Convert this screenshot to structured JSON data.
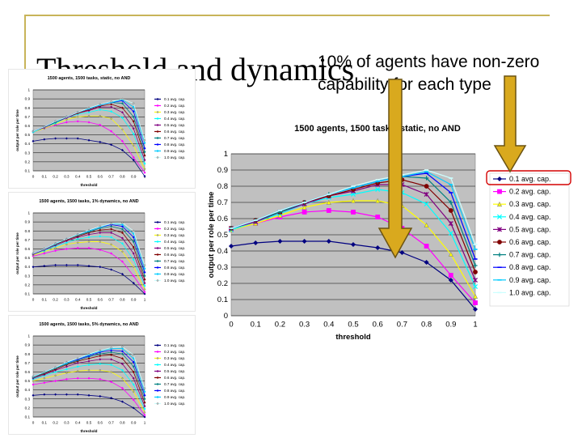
{
  "slide": {
    "title": "Threshold and dynamics",
    "note": "10% of agents have non-zero capability for each type"
  },
  "colors": {
    "accent_rule": "#c8b45a",
    "arrow_fill": "#d9a91e",
    "arrow_stroke": "#6b5312",
    "plot_bg": "#c0c0c0"
  },
  "chart_data": [
    {
      "type": "line",
      "title": "1500 agents, 1500 tasks, static, no AND",
      "xlabel": "threshold",
      "ylabel": "output per role per time",
      "x": [
        0,
        0.1,
        0.2,
        0.3,
        0.4,
        0.5,
        0.6,
        0.7,
        0.8,
        0.9,
        1
      ],
      "xticks": [
        "0",
        "0.1",
        "0.2",
        "0.3",
        "0.4",
        "0.5",
        "0.6",
        "0.7",
        "0.8",
        "0.9",
        "1"
      ],
      "ylim": [
        0,
        1
      ],
      "yticks": [
        "0",
        "0.1",
        "0.2",
        "0.3",
        "0.4",
        "0.5",
        "0.6",
        "0.7",
        "0.8",
        "0.9",
        "1"
      ],
      "grid": true,
      "legend_position": "right",
      "highlighted_series": "0.1 avg. cap.",
      "series": [
        {
          "name": "0.1 avg. cap.",
          "color": "#000080",
          "marker": "diamond",
          "values": [
            0.43,
            0.45,
            0.46,
            0.46,
            0.46,
            0.44,
            0.42,
            0.39,
            0.33,
            0.22,
            0.04
          ]
        },
        {
          "name": "0.2 avg. cap.",
          "color": "#ff00ff",
          "marker": "square",
          "values": [
            0.53,
            0.57,
            0.61,
            0.64,
            0.65,
            0.64,
            0.61,
            0.54,
            0.43,
            0.25,
            0.08
          ]
        },
        {
          "name": "0.3 avg. cap.",
          "color": "#ffff00",
          "marker": "triangle",
          "values": [
            0.53,
            0.57,
            0.62,
            0.67,
            0.7,
            0.71,
            0.71,
            0.68,
            0.56,
            0.38,
            0.12
          ]
        },
        {
          "name": "0.4 avg. cap.",
          "color": "#00ffff",
          "marker": "x",
          "values": [
            0.53,
            0.58,
            0.63,
            0.69,
            0.73,
            0.75,
            0.78,
            0.76,
            0.69,
            0.51,
            0.18
          ]
        },
        {
          "name": "0.5 avg. cap.",
          "color": "#800080",
          "marker": "star",
          "values": [
            0.54,
            0.58,
            0.64,
            0.69,
            0.74,
            0.77,
            0.81,
            0.81,
            0.75,
            0.57,
            0.22
          ]
        },
        {
          "name": "0.6 avg. cap.",
          "color": "#800000",
          "marker": "circle",
          "values": [
            0.54,
            0.59,
            0.64,
            0.7,
            0.74,
            0.78,
            0.82,
            0.84,
            0.8,
            0.65,
            0.27
          ]
        },
        {
          "name": "0.7 avg. cap.",
          "color": "#008080",
          "marker": "plus",
          "values": [
            0.54,
            0.59,
            0.64,
            0.7,
            0.75,
            0.79,
            0.83,
            0.86,
            0.85,
            0.7,
            0.31
          ]
        },
        {
          "name": "0.8 avg. cap.",
          "color": "#0000ff",
          "marker": "dash",
          "values": [
            0.54,
            0.59,
            0.65,
            0.7,
            0.75,
            0.79,
            0.83,
            0.86,
            0.88,
            0.76,
            0.35
          ]
        },
        {
          "name": "0.9 avg. cap.",
          "color": "#00ccff",
          "marker": "dash",
          "values": [
            0.54,
            0.59,
            0.65,
            0.7,
            0.75,
            0.79,
            0.83,
            0.86,
            0.89,
            0.81,
            0.41
          ]
        },
        {
          "name": "1.0 avg. cap.",
          "color": "#ccffff",
          "marker": "dash",
          "values": [
            0.54,
            0.59,
            0.65,
            0.7,
            0.75,
            0.8,
            0.84,
            0.87,
            0.9,
            0.85,
            0.44
          ]
        }
      ]
    },
    {
      "type": "line",
      "title": "1500 agents, 1500 tasks, static, no AND",
      "xlabel": "threshold",
      "ylabel": "output per role per time",
      "x": [
        0,
        0.1,
        0.2,
        0.3,
        0.4,
        0.5,
        0.6,
        0.7,
        0.8,
        0.9,
        1
      ],
      "xticks": [
        "0",
        "0.1",
        "0.2",
        "0.3",
        "0.4",
        "0.5",
        "0.6",
        "0.7",
        "0.8",
        "0.9",
        "1"
      ],
      "ylim": [
        0.1,
        1
      ],
      "yticks": [
        "0.1",
        "0.2",
        "0.3",
        "0.4",
        "0.5",
        "0.6",
        "0.7",
        "0.8",
        "0.9",
        "1"
      ],
      "legend_position": "right",
      "series": [
        {
          "name": "0.1 avg. cap.",
          "color": "#000080",
          "values": [
            0.43,
            0.45,
            0.46,
            0.46,
            0.46,
            0.44,
            0.42,
            0.39,
            0.33,
            0.22,
            0.04
          ]
        },
        {
          "name": "0.2 avg. cap.",
          "color": "#ff00ff",
          "values": [
            0.53,
            0.57,
            0.61,
            0.64,
            0.65,
            0.64,
            0.61,
            0.54,
            0.43,
            0.25,
            0.08
          ]
        },
        {
          "name": "0.3 avg. cap.",
          "color": "#ffff00",
          "values": [
            0.53,
            0.57,
            0.62,
            0.67,
            0.7,
            0.71,
            0.71,
            0.68,
            0.56,
            0.38,
            0.12
          ]
        },
        {
          "name": "0.4 avg. cap.",
          "color": "#00ffff",
          "values": [
            0.53,
            0.58,
            0.63,
            0.69,
            0.73,
            0.75,
            0.78,
            0.76,
            0.69,
            0.51,
            0.18
          ]
        },
        {
          "name": "0.5 avg. cap.",
          "color": "#800080",
          "values": [
            0.54,
            0.58,
            0.64,
            0.69,
            0.74,
            0.77,
            0.81,
            0.81,
            0.75,
            0.57,
            0.22
          ]
        },
        {
          "name": "0.6 avg. cap.",
          "color": "#800000",
          "values": [
            0.54,
            0.59,
            0.64,
            0.7,
            0.74,
            0.78,
            0.82,
            0.84,
            0.8,
            0.65,
            0.27
          ]
        },
        {
          "name": "0.7 avg. cap.",
          "color": "#008080",
          "values": [
            0.54,
            0.59,
            0.64,
            0.7,
            0.75,
            0.79,
            0.83,
            0.86,
            0.85,
            0.7,
            0.31
          ]
        },
        {
          "name": "0.8 avg. cap.",
          "color": "#0000ff",
          "values": [
            0.54,
            0.59,
            0.65,
            0.7,
            0.75,
            0.79,
            0.83,
            0.86,
            0.88,
            0.76,
            0.35
          ]
        },
        {
          "name": "0.9 avg. cap.",
          "color": "#00ccff",
          "values": [
            0.54,
            0.59,
            0.65,
            0.7,
            0.75,
            0.79,
            0.83,
            0.86,
            0.89,
            0.81,
            0.41
          ]
        },
        {
          "name": "1.0 avg. cap.",
          "color": "#ccffff",
          "values": [
            0.54,
            0.59,
            0.65,
            0.7,
            0.75,
            0.8,
            0.84,
            0.87,
            0.9,
            0.85,
            0.44
          ]
        }
      ]
    },
    {
      "type": "line",
      "title": "1500 agents, 1500 tasks, 1% dynamics, no AND",
      "xlabel": "threshold",
      "ylabel": "output per role per time",
      "x": [
        0,
        0.1,
        0.2,
        0.3,
        0.4,
        0.5,
        0.6,
        0.7,
        0.8,
        0.9,
        1
      ],
      "xticks": [
        "0",
        "0.1",
        "0.2",
        "0.3",
        "0.4",
        "0.5",
        "0.6",
        "0.7",
        "0.8",
        "0.9",
        "1"
      ],
      "ylim": [
        0.1,
        1
      ],
      "yticks": [
        "0.1",
        "0.2",
        "0.3",
        "0.4",
        "0.5",
        "0.6",
        "0.7",
        "0.8",
        "0.9",
        "1"
      ],
      "legend_position": "right",
      "series": [
        {
          "name": "0.1 avg. cap.",
          "color": "#000080",
          "values": [
            0.4,
            0.41,
            0.42,
            0.42,
            0.42,
            0.41,
            0.4,
            0.37,
            0.32,
            0.22,
            0.1
          ]
        },
        {
          "name": "0.2 avg. cap.",
          "color": "#ff00ff",
          "values": [
            0.52,
            0.55,
            0.58,
            0.6,
            0.61,
            0.61,
            0.59,
            0.55,
            0.46,
            0.3,
            0.12
          ]
        },
        {
          "name": "0.3 avg. cap.",
          "color": "#ffff00",
          "values": [
            0.53,
            0.57,
            0.61,
            0.65,
            0.67,
            0.68,
            0.68,
            0.65,
            0.57,
            0.4,
            0.15
          ]
        },
        {
          "name": "0.4 avg. cap.",
          "color": "#00ffff",
          "values": [
            0.54,
            0.58,
            0.63,
            0.67,
            0.71,
            0.73,
            0.74,
            0.73,
            0.66,
            0.48,
            0.19
          ]
        },
        {
          "name": "0.5 avg. cap.",
          "color": "#800080",
          "values": [
            0.54,
            0.59,
            0.64,
            0.69,
            0.73,
            0.76,
            0.78,
            0.78,
            0.72,
            0.55,
            0.22
          ]
        },
        {
          "name": "0.6 avg. cap.",
          "color": "#800000",
          "values": [
            0.55,
            0.6,
            0.65,
            0.7,
            0.74,
            0.78,
            0.81,
            0.82,
            0.78,
            0.62,
            0.26
          ]
        },
        {
          "name": "0.7 avg. cap.",
          "color": "#008080",
          "values": [
            0.55,
            0.6,
            0.65,
            0.71,
            0.75,
            0.79,
            0.83,
            0.85,
            0.82,
            0.68,
            0.3
          ]
        },
        {
          "name": "0.8 avg. cap.",
          "color": "#0000ff",
          "values": [
            0.55,
            0.6,
            0.66,
            0.71,
            0.76,
            0.8,
            0.84,
            0.87,
            0.85,
            0.73,
            0.34
          ]
        },
        {
          "name": "0.9 avg. cap.",
          "color": "#00ccff",
          "values": [
            0.55,
            0.6,
            0.66,
            0.71,
            0.76,
            0.8,
            0.84,
            0.88,
            0.87,
            0.77,
            0.38
          ]
        },
        {
          "name": "1.0 avg. cap.",
          "color": "#ccffff",
          "values": [
            0.55,
            0.6,
            0.66,
            0.71,
            0.76,
            0.81,
            0.85,
            0.88,
            0.89,
            0.8,
            0.42
          ]
        }
      ]
    },
    {
      "type": "line",
      "title": "1500 agents, 1500 tasks, 5% dynamics, no AND",
      "xlabel": "threshold",
      "ylabel": "output per role per time",
      "x": [
        0,
        0.1,
        0.2,
        0.3,
        0.4,
        0.5,
        0.6,
        0.7,
        0.8,
        0.9,
        1
      ],
      "xticks": [
        "0",
        "0.1",
        "0.2",
        "0.3",
        "0.4",
        "0.5",
        "0.6",
        "0.7",
        "0.8",
        "0.9",
        "1"
      ],
      "ylim": [
        0.1,
        1
      ],
      "yticks": [
        "0.1",
        "0.2",
        "0.3",
        "0.4",
        "0.5",
        "0.6",
        "0.7",
        "0.8",
        "0.9",
        "1"
      ],
      "legend_position": "right",
      "series": [
        {
          "name": "0.1 avg. cap.",
          "color": "#000080",
          "values": [
            0.34,
            0.35,
            0.35,
            0.35,
            0.35,
            0.34,
            0.33,
            0.31,
            0.27,
            0.2,
            0.1
          ]
        },
        {
          "name": "0.2 avg. cap.",
          "color": "#ff00ff",
          "values": [
            0.46,
            0.48,
            0.5,
            0.52,
            0.53,
            0.53,
            0.52,
            0.49,
            0.42,
            0.29,
            0.12
          ]
        },
        {
          "name": "0.3 avg. cap.",
          "color": "#ffff00",
          "values": [
            0.5,
            0.53,
            0.56,
            0.59,
            0.61,
            0.62,
            0.62,
            0.6,
            0.53,
            0.38,
            0.15
          ]
        },
        {
          "name": "0.4 avg. cap.",
          "color": "#00ffff",
          "values": [
            0.52,
            0.56,
            0.6,
            0.63,
            0.66,
            0.68,
            0.69,
            0.68,
            0.62,
            0.46,
            0.19
          ]
        },
        {
          "name": "0.5 avg. cap.",
          "color": "#800080",
          "values": [
            0.53,
            0.57,
            0.62,
            0.66,
            0.7,
            0.72,
            0.74,
            0.74,
            0.69,
            0.53,
            0.22
          ]
        },
        {
          "name": "0.6 avg. cap.",
          "color": "#800000",
          "values": [
            0.54,
            0.58,
            0.63,
            0.68,
            0.72,
            0.75,
            0.78,
            0.79,
            0.75,
            0.6,
            0.26
          ]
        },
        {
          "name": "0.7 avg. cap.",
          "color": "#008080",
          "values": [
            0.54,
            0.59,
            0.64,
            0.69,
            0.73,
            0.77,
            0.8,
            0.82,
            0.8,
            0.66,
            0.3
          ]
        },
        {
          "name": "0.8 avg. cap.",
          "color": "#0000ff",
          "values": [
            0.55,
            0.6,
            0.65,
            0.7,
            0.74,
            0.78,
            0.82,
            0.84,
            0.83,
            0.71,
            0.34
          ]
        },
        {
          "name": "0.9 avg. cap.",
          "color": "#00ccff",
          "values": [
            0.55,
            0.6,
            0.65,
            0.7,
            0.75,
            0.79,
            0.83,
            0.86,
            0.86,
            0.75,
            0.38
          ]
        },
        {
          "name": "1.0 avg. cap.",
          "color": "#ccffff",
          "values": [
            0.55,
            0.6,
            0.65,
            0.71,
            0.75,
            0.8,
            0.84,
            0.87,
            0.88,
            0.79,
            0.42
          ]
        }
      ]
    }
  ]
}
